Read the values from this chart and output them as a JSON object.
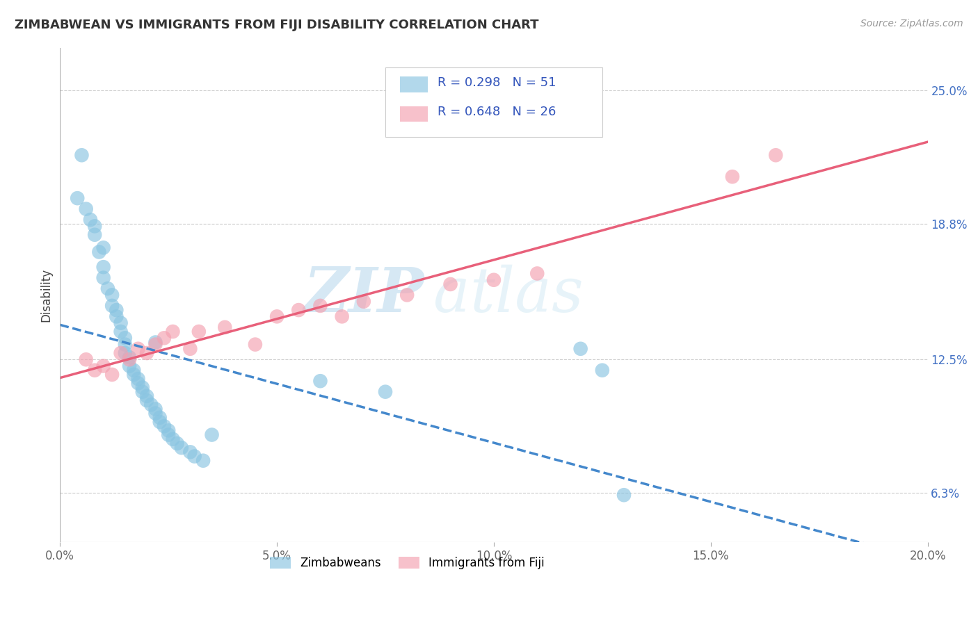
{
  "title": "ZIMBABWEAN VS IMMIGRANTS FROM FIJI DISABILITY CORRELATION CHART",
  "source": "Source: ZipAtlas.com",
  "ylabel": "Disability",
  "xlim": [
    0.0,
    0.2
  ],
  "ylim": [
    0.04,
    0.27
  ],
  "xtick_labels": [
    "0.0%",
    "5.0%",
    "10.0%",
    "15.0%",
    "20.0%"
  ],
  "xtick_values": [
    0.0,
    0.05,
    0.1,
    0.15,
    0.2
  ],
  "ytick_labels_right": [
    "6.3%",
    "12.5%",
    "18.8%",
    "25.0%"
  ],
  "ytick_values_right": [
    0.063,
    0.125,
    0.188,
    0.25
  ],
  "blue_color": "#89c4e1",
  "pink_color": "#f4a0b0",
  "blue_line_color": "#4488cc",
  "pink_line_color": "#e8607a",
  "legend_r1": "R = 0.298",
  "legend_n1": "N = 51",
  "legend_r2": "R = 0.648",
  "legend_n2": "N = 26",
  "legend_label1": "Zimbabweans",
  "legend_label2": "Immigrants from Fiji",
  "watermark_zip": "ZIP",
  "watermark_atlas": "atlas",
  "blue_scatter_x": [
    0.005,
    0.007,
    0.008,
    0.009,
    0.01,
    0.01,
    0.011,
    0.012,
    0.012,
    0.013,
    0.013,
    0.014,
    0.014,
    0.015,
    0.015,
    0.015,
    0.016,
    0.016,
    0.017,
    0.017,
    0.018,
    0.018,
    0.019,
    0.019,
    0.02,
    0.02,
    0.021,
    0.022,
    0.022,
    0.023,
    0.023,
    0.024,
    0.025,
    0.025,
    0.026,
    0.027,
    0.028,
    0.03,
    0.031,
    0.033,
    0.004,
    0.006,
    0.008,
    0.01,
    0.022,
    0.035,
    0.06,
    0.075,
    0.12,
    0.125,
    0.13
  ],
  "blue_scatter_y": [
    0.22,
    0.19,
    0.183,
    0.175,
    0.168,
    0.163,
    0.158,
    0.155,
    0.15,
    0.148,
    0.145,
    0.142,
    0.138,
    0.135,
    0.132,
    0.128,
    0.126,
    0.122,
    0.12,
    0.118,
    0.116,
    0.114,
    0.112,
    0.11,
    0.108,
    0.106,
    0.104,
    0.102,
    0.1,
    0.098,
    0.096,
    0.094,
    0.092,
    0.09,
    0.088,
    0.086,
    0.084,
    0.082,
    0.08,
    0.078,
    0.2,
    0.195,
    0.187,
    0.177,
    0.133,
    0.09,
    0.115,
    0.11,
    0.13,
    0.12,
    0.062
  ],
  "pink_scatter_x": [
    0.006,
    0.008,
    0.01,
    0.012,
    0.014,
    0.016,
    0.018,
    0.02,
    0.022,
    0.024,
    0.026,
    0.03,
    0.032,
    0.038,
    0.045,
    0.05,
    0.055,
    0.06,
    0.065,
    0.07,
    0.08,
    0.09,
    0.1,
    0.11,
    0.155,
    0.165
  ],
  "pink_scatter_y": [
    0.125,
    0.12,
    0.122,
    0.118,
    0.128,
    0.125,
    0.13,
    0.128,
    0.132,
    0.135,
    0.138,
    0.13,
    0.138,
    0.14,
    0.132,
    0.145,
    0.148,
    0.15,
    0.145,
    0.152,
    0.155,
    0.16,
    0.162,
    0.165,
    0.21,
    0.22
  ]
}
